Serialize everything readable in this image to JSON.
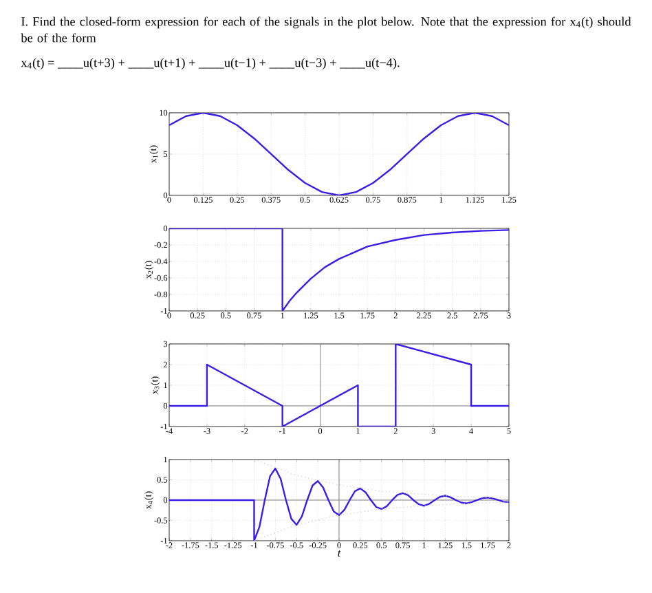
{
  "chart_data": [
    {
      "type": "line",
      "title": "I. Find the closed-form expression for each of the signals in the plot below. Note that the expression for x$_{4}$(t) should be of the form",
      "subtitle": "x$_{4}$(t) = ____u(t+3) + ____u(t+1) + ____u(t−1) + ____u(t−3) + ____u(t−4).",
      "ylabel": "x$_{1}$(t)",
      "x": [
        0,
        0.0625,
        0.125,
        0.1875,
        0.25,
        0.3125,
        0.375,
        0.4375,
        0.5,
        0.5625,
        0.625,
        0.6875,
        0.75,
        0.8125,
        0.875,
        0.9375,
        1,
        1.0625,
        1.125,
        1.1875,
        1.25
      ],
      "series": [
        {
          "color": "#3b1ee6",
          "values": [
            8.5,
            9.6,
            10,
            9.6,
            8.5,
            6.9,
            5,
            3.1,
            1.5,
            0.4,
            0,
            0.4,
            1.5,
            3.1,
            5,
            6.9,
            8.5,
            9.6,
            10,
            9.6,
            8.5
          ]
        }
      ],
      "xlim": [
        0,
        1.25
      ],
      "ylim": [
        0,
        10
      ],
      "xticks": [
        0,
        0.125,
        0.25,
        0.375,
        0.5,
        0.625,
        0.75,
        0.875,
        1,
        1.125,
        1.25
      ],
      "yticks": [
        0,
        5,
        10
      ],
      "grid": true
    },
    {
      "type": "line",
      "ylabel": "x$_{2}$(t)",
      "x": [
        0,
        1,
        1,
        1.0625,
        1.125,
        1.25,
        1.375,
        1.5,
        1.75,
        2,
        2.25,
        2.5,
        2.75,
        3
      ],
      "series": [
        {
          "color": "#3b1ee6",
          "values": [
            0,
            0,
            -1,
            -0.88,
            -0.78,
            -0.61,
            -0.47,
            -0.37,
            -0.22,
            -0.14,
            -0.08,
            -0.05,
            -0.03,
            -0.02
          ]
        }
      ],
      "xlim": [
        0,
        3
      ],
      "ylim": [
        -1,
        0
      ],
      "xticks": [
        0,
        0.25,
        0.5,
        0.75,
        1,
        1.25,
        1.5,
        1.75,
        2,
        2.25,
        2.5,
        2.75,
        3
      ],
      "yticks": [
        -1,
        -0.8,
        -0.6,
        -0.4,
        -0.2,
        0
      ],
      "grid": true
    },
    {
      "type": "line",
      "ylabel": "x$_{3}$(t)",
      "x": [
        -4,
        -3,
        -3,
        -1,
        -1,
        1,
        1,
        2,
        2,
        4,
        4,
        5
      ],
      "series": [
        {
          "color": "#3b1ee6",
          "values": [
            0,
            0,
            2,
            0,
            -1,
            1,
            -1,
            -1,
            3,
            2,
            0,
            0
          ]
        }
      ],
      "xlim": [
        -4,
        5
      ],
      "ylim": [
        -1,
        3
      ],
      "xticks": [
        -4,
        -3,
        -2,
        -1,
        0,
        1,
        2,
        3,
        4,
        5
      ],
      "yticks": [
        -1,
        0,
        1,
        2,
        3
      ],
      "grid": true
    },
    {
      "type": "line",
      "ylabel": "x$_{4}$(t)",
      "xlabel": "t",
      "series": [
        {
          "color": "#3b1ee6",
          "x": [
            -2,
            -1,
            -1,
            -0.9375,
            -0.875,
            -0.8125,
            -0.75,
            -0.6875,
            -0.625,
            -0.5625,
            -0.5,
            -0.4375,
            -0.375,
            -0.3125,
            -0.25,
            -0.1875,
            -0.125,
            -0.0625,
            0,
            0.0625,
            0.125,
            0.1875,
            0.25,
            0.3125,
            0.375,
            0.4375,
            0.5,
            0.5625,
            0.625,
            0.6875,
            0.75,
            0.8125,
            0.875,
            0.9375,
            1,
            1.0625,
            1.125,
            1.1875,
            1.25,
            1.3125,
            1.375,
            1.4375,
            1.5,
            1.5625,
            1.625,
            1.6875,
            1.75,
            1.8125,
            1.875,
            1.9375,
            2
          ],
          "values": [
            0,
            0,
            -1,
            -0.66,
            0,
            0.59,
            0.78,
            0.52,
            0,
            -0.46,
            -0.61,
            -0.4,
            0,
            0.36,
            0.47,
            0.31,
            0,
            -0.28,
            -0.37,
            -0.24,
            0,
            0.22,
            0.29,
            0.19,
            0,
            -0.17,
            -0.22,
            -0.15,
            0,
            0.13,
            0.17,
            0.12,
            0,
            -0.1,
            -0.14,
            -0.09,
            0,
            0.08,
            0.11,
            0.07,
            0,
            -0.06,
            -0.08,
            -0.05,
            0,
            0.05,
            0.06,
            0.04,
            0,
            -0.04,
            -0.05
          ]
        },
        {
          "color": "#c8c8c8",
          "line_style": "dotted",
          "x": [
            -1,
            -0.5,
            0,
            0.5,
            1,
            1.5,
            2
          ],
          "values": [
            1,
            0.61,
            0.37,
            0.22,
            0.14,
            0.08,
            0.05
          ]
        },
        {
          "color": "#c8c8c8",
          "line_style": "dotted",
          "x": [
            -1,
            -0.5,
            0,
            0.5,
            1,
            1.5,
            2
          ],
          "values": [
            -1,
            -0.61,
            -0.37,
            -0.22,
            -0.14,
            -0.08,
            -0.05
          ]
        }
      ],
      "xlim": [
        -2,
        2
      ],
      "ylim": [
        -1,
        1
      ],
      "xticks": [
        -2,
        -1.75,
        -1.5,
        -1.25,
        -1,
        -0.75,
        -0.5,
        -0.25,
        0,
        0.25,
        0.5,
        0.75,
        1,
        1.25,
        1.5,
        1.75,
        2
      ],
      "yticks": [
        -1,
        -0.5,
        0,
        0.5,
        1
      ],
      "grid": true
    }
  ]
}
